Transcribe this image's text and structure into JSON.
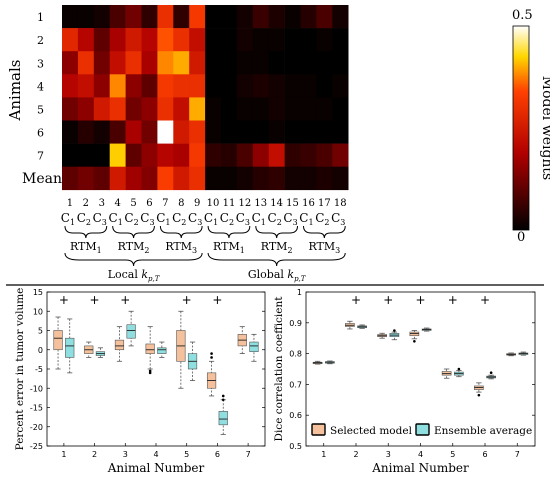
{
  "chart_data": [
    {
      "type": "heatmap",
      "ylabel": "Animals",
      "row_labels": [
        "1",
        "2",
        "3",
        "4",
        "5",
        "6",
        "7",
        "Mean"
      ],
      "col_numbers": [
        "1",
        "2",
        "3",
        "4",
        "5",
        "6",
        "7",
        "8",
        "9",
        "10",
        "11",
        "12",
        "13",
        "14",
        "15",
        "16",
        "17",
        "18"
      ],
      "col_models": [
        "C1",
        "C2",
        "C3",
        "C1",
        "C2",
        "C3",
        "C1",
        "C2",
        "C3",
        "C1",
        "C2",
        "C3",
        "C1",
        "C2",
        "C3",
        "C1",
        "C2",
        "C3"
      ],
      "col_sub": "C",
      "col_sub_index": [
        "1",
        "2",
        "3"
      ],
      "rtm_groups": [
        {
          "label": "RTM",
          "sub": "1"
        },
        {
          "label": "RTM",
          "sub": "2"
        },
        {
          "label": "RTM",
          "sub": "3"
        },
        {
          "label": "RTM",
          "sub": "1"
        },
        {
          "label": "RTM",
          "sub": "2"
        },
        {
          "label": "RTM",
          "sub": "3"
        }
      ],
      "super_groups": [
        {
          "label": "Local ",
          "k": "k",
          "sub": "p,T"
        },
        {
          "label": "Global ",
          "k": "k",
          "sub": "p,T"
        }
      ],
      "colorbar": {
        "label": "Model weights",
        "max_label": "0.5",
        "min_label": "0",
        "range": [
          0,
          0.5
        ]
      },
      "values": [
        [
          0.01,
          0.01,
          0.02,
          0.08,
          0.12,
          0.05,
          0.3,
          0.05,
          0.32,
          0.0,
          0.0,
          0.02,
          0.06,
          0.03,
          0.01,
          0.04,
          0.08,
          0.02
        ],
        [
          0.28,
          0.2,
          0.1,
          0.18,
          0.25,
          0.2,
          0.35,
          0.3,
          0.22,
          0.0,
          0.0,
          0.02,
          0.01,
          0.01,
          0.0,
          0.0,
          0.01,
          0.0
        ],
        [
          0.15,
          0.3,
          0.12,
          0.22,
          0.3,
          0.18,
          0.38,
          0.4,
          0.25,
          0.0,
          0.0,
          0.01,
          0.01,
          0.0,
          0.0,
          0.0,
          0.0,
          0.0
        ],
        [
          0.2,
          0.22,
          0.15,
          0.38,
          0.15,
          0.1,
          0.32,
          0.3,
          0.3,
          0.0,
          0.0,
          0.02,
          0.03,
          0.02,
          0.01,
          0.01,
          0.0,
          0.01
        ],
        [
          0.12,
          0.15,
          0.25,
          0.3,
          0.12,
          0.15,
          0.3,
          0.22,
          0.4,
          0.01,
          0.0,
          0.01,
          0.01,
          0.02,
          0.01,
          0.01,
          0.01,
          0.0
        ],
        [
          0.01,
          0.04,
          0.02,
          0.08,
          0.18,
          0.12,
          0.5,
          0.25,
          0.3,
          0.01,
          0.0,
          0.0,
          0.0,
          0.01,
          0.0,
          0.0,
          0.0,
          0.0
        ],
        [
          0.0,
          0.0,
          0.0,
          0.42,
          0.1,
          0.15,
          0.2,
          0.18,
          0.32,
          0.05,
          0.04,
          0.08,
          0.15,
          0.22,
          0.05,
          0.06,
          0.08,
          0.12
        ],
        [
          0.1,
          0.12,
          0.1,
          0.25,
          0.17,
          0.14,
          0.33,
          0.25,
          0.3,
          0.01,
          0.01,
          0.02,
          0.04,
          0.05,
          0.02,
          0.02,
          0.03,
          0.02
        ]
      ]
    },
    {
      "type": "boxplot",
      "ylabel": "Percent error in tumor volume",
      "xlabel": "Animal Number",
      "categories": [
        "1",
        "2",
        "3",
        "4",
        "5",
        "6",
        "7"
      ],
      "ylim": [
        -25,
        15
      ],
      "yticks": [
        "-25",
        "-20",
        "-15",
        "-10",
        "-5",
        "0",
        "5",
        "10",
        "15"
      ],
      "significance_marker": "+",
      "significant": [
        1,
        2,
        3,
        5,
        6
      ],
      "series": [
        {
          "name": "Selected model",
          "color": "#f4c19c",
          "boxes": [
            {
              "min": -5,
              "q1": 0,
              "med": 3,
              "q3": 5,
              "max": 8.5,
              "outliers": []
            },
            {
              "min": -2,
              "q1": -1,
              "med": 0,
              "q3": 1,
              "max": 2,
              "outliers": []
            },
            {
              "min": -3,
              "q1": 0,
              "med": 1,
              "q3": 2.5,
              "max": 6,
              "outliers": []
            },
            {
              "min": -5,
              "q1": -1,
              "med": 0,
              "q3": 1.5,
              "max": 6,
              "outliers": [
                -5.5,
                -6
              ]
            },
            {
              "min": -10,
              "q1": -3,
              "med": 1,
              "q3": 5,
              "max": 10,
              "outliers": []
            },
            {
              "min": -12,
              "q1": -10,
              "med": -8,
              "q3": -6,
              "max": -3,
              "outliers": [
                -1,
                -2
              ]
            },
            {
              "min": -1,
              "q1": 1,
              "med": 2.5,
              "q3": 4,
              "max": 6,
              "outliers": []
            }
          ]
        },
        {
          "name": "Ensemble average",
          "color": "#8fdfe0",
          "boxes": [
            {
              "min": -6,
              "q1": -2,
              "med": 1,
              "q3": 3,
              "max": 8,
              "outliers": []
            },
            {
              "min": -2,
              "q1": -1.5,
              "med": -1,
              "q3": -0.5,
              "max": 0.5,
              "outliers": []
            },
            {
              "min": 1,
              "q1": 3,
              "med": 5,
              "q3": 6.5,
              "max": 10,
              "outliers": []
            },
            {
              "min": -2,
              "q1": -1,
              "med": 0,
              "q3": 0.5,
              "max": 2,
              "outliers": []
            },
            {
              "min": -8,
              "q1": -5,
              "med": -3,
              "q3": -1,
              "max": 2,
              "outliers": []
            },
            {
              "min": -22,
              "q1": -19.5,
              "med": -18,
              "q3": -16,
              "max": -13,
              "outliers": [
                -12,
                -13
              ]
            },
            {
              "min": -3,
              "q1": -0.5,
              "med": 1,
              "q3": 2,
              "max": 4,
              "outliers": []
            }
          ]
        }
      ]
    },
    {
      "type": "boxplot",
      "ylabel": "Dice correlation coefficient",
      "xlabel": "Animal Number",
      "categories": [
        "1",
        "2",
        "3",
        "4",
        "5",
        "6",
        "7"
      ],
      "ylim": [
        0.5,
        1
      ],
      "yticks": [
        "0.5",
        "0.6",
        "0.7",
        "0.8",
        "0.9",
        "1"
      ],
      "significance_marker": "+",
      "significant": [
        2,
        3,
        4,
        5,
        6
      ],
      "series": [
        {
          "name": "Selected model",
          "color": "#f4c19c",
          "boxes": [
            {
              "min": 0.766,
              "q1": 0.768,
              "med": 0.77,
              "q3": 0.772,
              "max": 0.775,
              "outliers": []
            },
            {
              "min": 0.88,
              "q1": 0.888,
              "med": 0.892,
              "q3": 0.898,
              "max": 0.905,
              "outliers": []
            },
            {
              "min": 0.85,
              "q1": 0.855,
              "med": 0.858,
              "q3": 0.862,
              "max": 0.866,
              "outliers": []
            },
            {
              "min": 0.848,
              "q1": 0.858,
              "med": 0.865,
              "q3": 0.87,
              "max": 0.875,
              "outliers": [
                0.84
              ]
            },
            {
              "min": 0.72,
              "q1": 0.73,
              "med": 0.735,
              "q3": 0.742,
              "max": 0.75,
              "outliers": []
            },
            {
              "min": 0.675,
              "q1": 0.683,
              "med": 0.69,
              "q3": 0.695,
              "max": 0.705,
              "outliers": [
                0.665
              ]
            },
            {
              "min": 0.793,
              "q1": 0.795,
              "med": 0.797,
              "q3": 0.8,
              "max": 0.802,
              "outliers": []
            }
          ]
        },
        {
          "name": "Ensemble average",
          "color": "#8fdfe0",
          "boxes": [
            {
              "min": 0.767,
              "q1": 0.769,
              "med": 0.772,
              "q3": 0.774,
              "max": 0.776,
              "outliers": []
            },
            {
              "min": 0.882,
              "q1": 0.884,
              "med": 0.887,
              "q3": 0.89,
              "max": 0.893,
              "outliers": []
            },
            {
              "min": 0.845,
              "q1": 0.855,
              "med": 0.86,
              "q3": 0.866,
              "max": 0.87,
              "outliers": [
                0.875
              ]
            },
            {
              "min": 0.873,
              "q1": 0.876,
              "med": 0.878,
              "q3": 0.88,
              "max": 0.883,
              "outliers": []
            },
            {
              "min": 0.725,
              "q1": 0.73,
              "med": 0.735,
              "q3": 0.74,
              "max": 0.745,
              "outliers": [
                0.75
              ]
            },
            {
              "min": 0.718,
              "q1": 0.721,
              "med": 0.724,
              "q3": 0.727,
              "max": 0.73,
              "outliers": [
                0.738
              ]
            },
            {
              "min": 0.795,
              "q1": 0.797,
              "med": 0.8,
              "q3": 0.802,
              "max": 0.805,
              "outliers": []
            }
          ]
        }
      ]
    }
  ]
}
